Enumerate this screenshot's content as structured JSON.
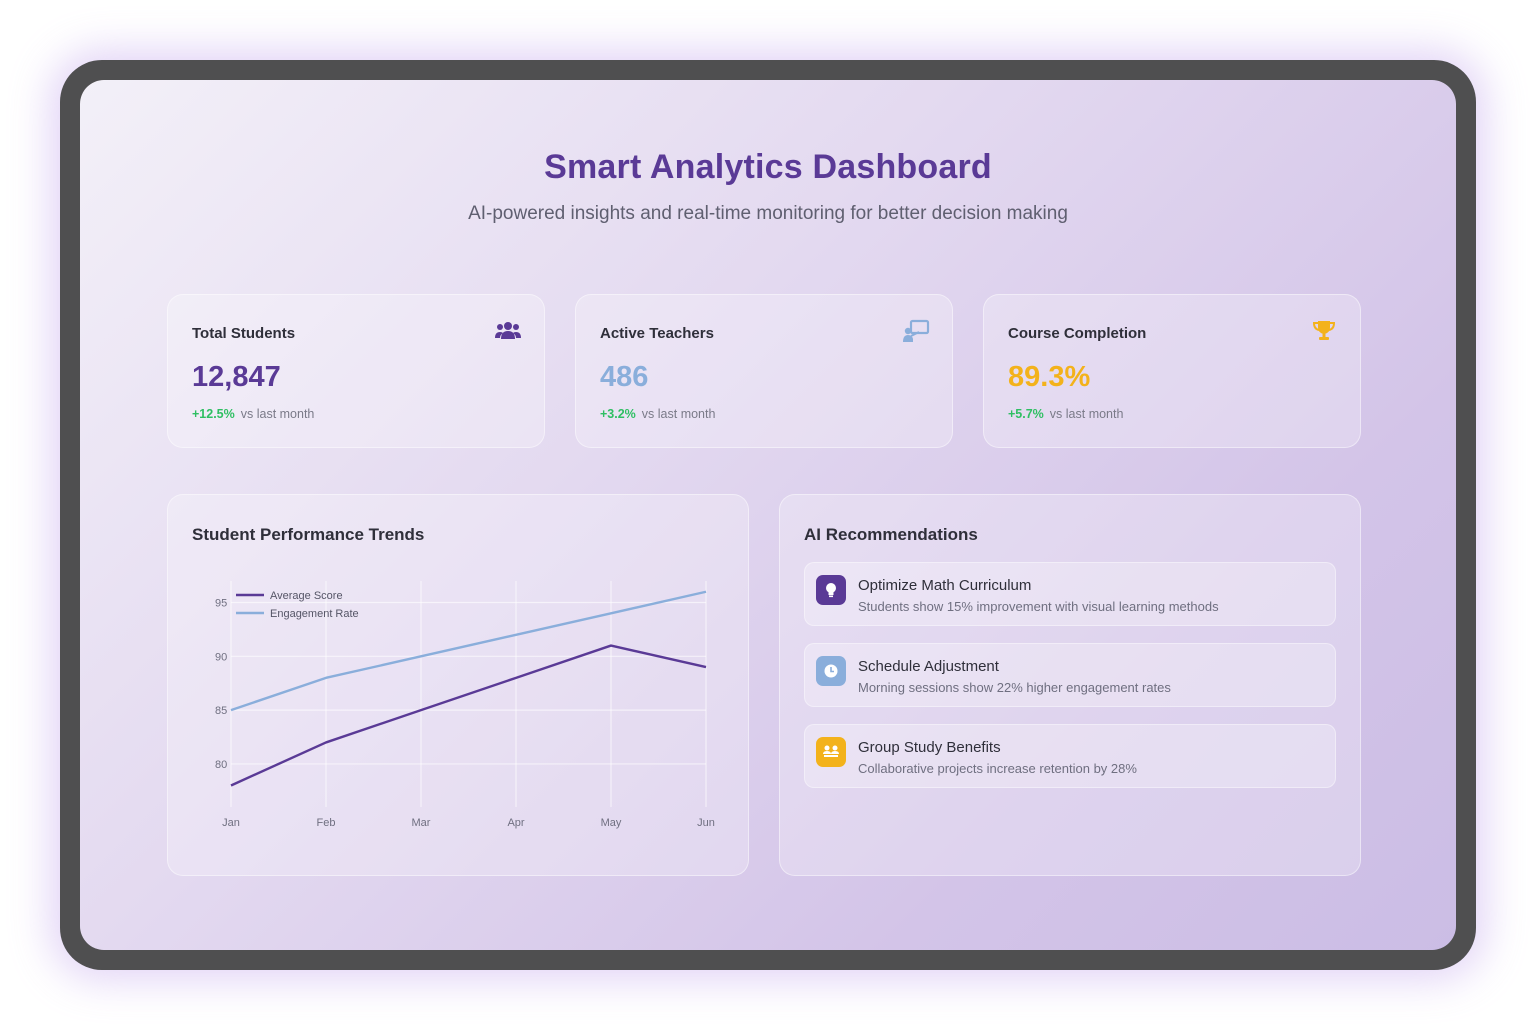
{
  "header": {
    "title": "Smart Analytics Dashboard",
    "subtitle": "AI-powered insights and real-time monitoring for better decision making"
  },
  "stats": [
    {
      "label": "Total Students",
      "value": "12,847",
      "change": "+12.5%",
      "period": "vs last month",
      "icon": "users-icon",
      "color": "#5a3a96"
    },
    {
      "label": "Active Teachers",
      "value": "486",
      "change": "+3.2%",
      "period": "vs last month",
      "icon": "teacher-icon",
      "color": "#8aaedb"
    },
    {
      "label": "Course Completion",
      "value": "89.3%",
      "change": "+5.7%",
      "period": "vs last month",
      "icon": "trophy-icon",
      "color": "#f3b21b"
    }
  ],
  "chart_panel": {
    "title": "Student Performance Trends"
  },
  "ai_panel": {
    "title": "AI Recommendations",
    "items": [
      {
        "title": "Optimize Math Curriculum",
        "desc": "Students show 15% improvement with visual learning methods",
        "icon": "lightbulb-icon",
        "color": "#5a3a96"
      },
      {
        "title": "Schedule Adjustment",
        "desc": "Morning sessions show 22% higher engagement rates",
        "icon": "clock-icon",
        "color": "#8aaedb"
      },
      {
        "title": "Group Study Benefits",
        "desc": "Collaborative projects increase retention by 28%",
        "icon": "group-icon",
        "color": "#f3b21b"
      }
    ]
  },
  "colors": {
    "positive": "#2fbf63",
    "accent": "#5a3a96"
  },
  "chart_data": {
    "type": "line",
    "x": [
      "Jan",
      "Feb",
      "Mar",
      "Apr",
      "May",
      "Jun"
    ],
    "series": [
      {
        "name": "Average Score",
        "values": [
          78,
          82,
          85,
          88,
          91,
          89
        ],
        "color": "#5a3a96"
      },
      {
        "name": "Engagement Rate",
        "values": [
          85,
          88,
          90,
          92,
          94,
          96
        ],
        "color": "#8aaedb"
      }
    ],
    "yticks": [
      80,
      85,
      90,
      95
    ],
    "ylim": [
      76,
      97
    ],
    "grid": true,
    "legend": "top-left"
  }
}
